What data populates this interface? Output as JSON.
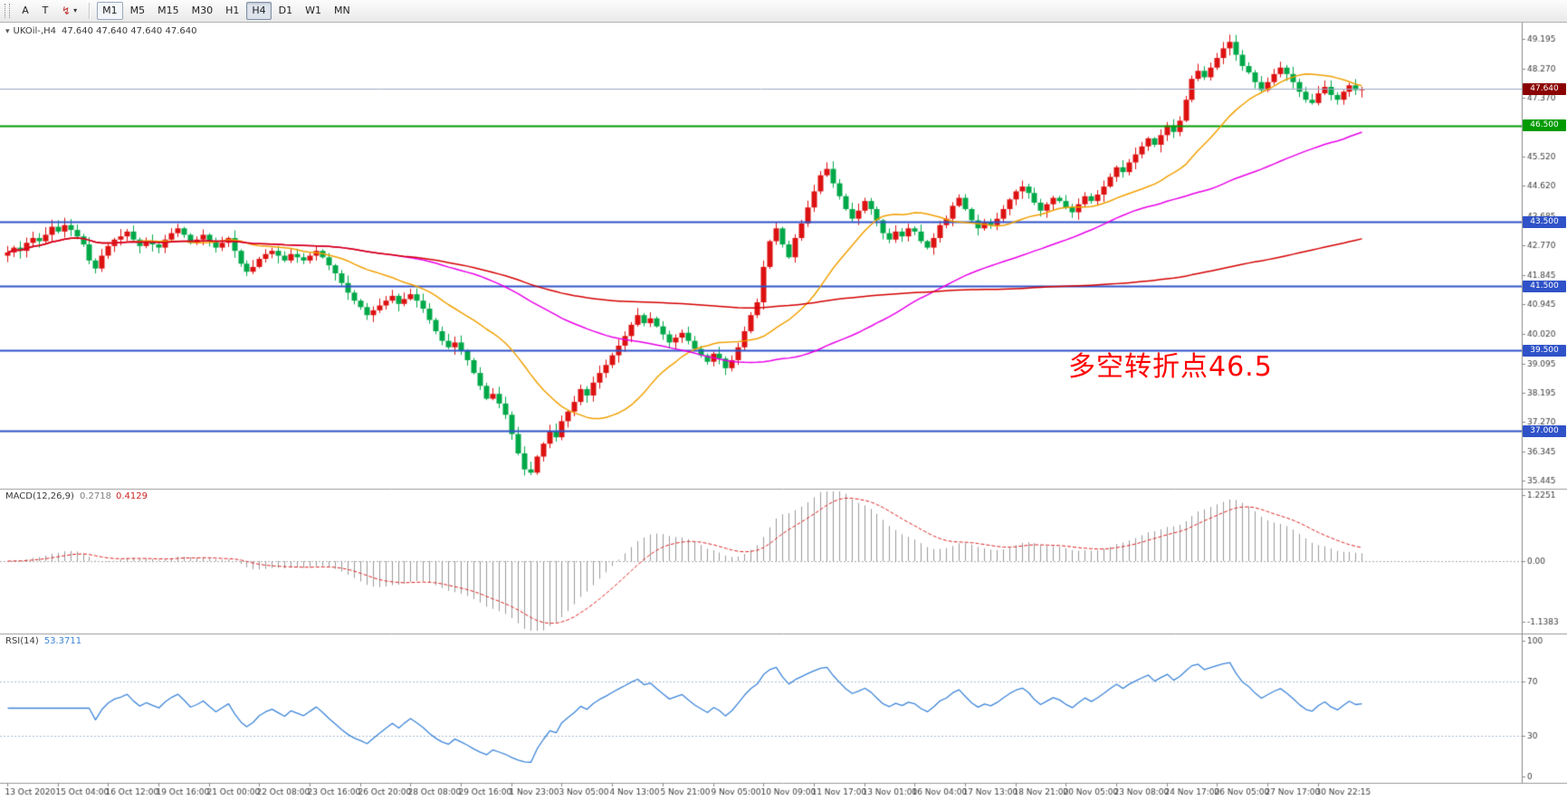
{
  "toolbar": {
    "tools": [
      {
        "label": "A"
      },
      {
        "label": "T"
      }
    ],
    "timeframes": [
      {
        "label": "M1",
        "state": "outlined"
      },
      {
        "label": "M5",
        "state": "normal"
      },
      {
        "label": "M15",
        "state": "normal"
      },
      {
        "label": "M30",
        "state": "normal"
      },
      {
        "label": "H1",
        "state": "normal"
      },
      {
        "label": "H4",
        "state": "active"
      },
      {
        "label": "D1",
        "state": "normal"
      },
      {
        "label": "W1",
        "state": "normal"
      },
      {
        "label": "MN",
        "state": "normal"
      }
    ]
  },
  "chart": {
    "title_symbol": "UKOil-,H4",
    "title_ohlc": "47.640 47.640 47.640 47.640",
    "annotation": {
      "text": "多空转折点46.5",
      "color": "#ff0000"
    },
    "axis_price_ticks": [
      "49.195",
      "48.270",
      "47.370",
      "45.520",
      "44.620",
      "43.685",
      "42.770",
      "41.845",
      "40.945",
      "40.020",
      "39.095",
      "38.195",
      "37.270",
      "36.345",
      "35.445"
    ],
    "levels": [
      {
        "label": "47.640",
        "price": 47.64,
        "type": "price",
        "badge_color": "#8b0000",
        "line_color": "#9aa8c4",
        "line_width": 1
      },
      {
        "label": "46.500",
        "price": 46.5,
        "type": "hline",
        "badge_color": "#009b00",
        "line_color": "#009b00",
        "line_width": 2
      },
      {
        "label": "43.500",
        "price": 43.5,
        "type": "hline",
        "badge_color": "#2f52c8",
        "line_color": "#2f52c8",
        "line_width": 2
      },
      {
        "label": "41.500",
        "price": 41.5,
        "type": "hline",
        "badge_color": "#2f52c8",
        "line_color": "#2f52c8",
        "line_width": 2
      },
      {
        "label": "39.500",
        "price": 39.5,
        "type": "hline",
        "badge_color": "#2f52c8",
        "line_color": "#2f52c8",
        "line_width": 2
      },
      {
        "label": "37.000",
        "price": 37.0,
        "type": "hline",
        "badge_color": "#2f52c8",
        "line_color": "#2f52c8",
        "line_width": 2
      }
    ],
    "dates": [
      "13 Oct 2020",
      "15 Oct 04:00",
      "16 Oct 12:00",
      "19 Oct 16:00",
      "21 Oct 00:00",
      "22 Oct 08:00",
      "23 Oct 16:00",
      "26 Oct 20:00",
      "28 Oct 08:00",
      "29 Oct 16:00",
      "1 Nov 23:00",
      "3 Nov 05:00",
      "4 Nov 13:00",
      "5 Nov 21:00",
      "9 Nov 05:00",
      "10 Nov 09:00",
      "11 Nov 17:00",
      "13 Nov 01:00",
      "16 Nov 04:00",
      "17 Nov 13:00",
      "18 Nov 21:00",
      "20 Nov 05:00",
      "23 Nov 08:00",
      "24 Nov 17:00",
      "26 Nov 05:00",
      "27 Nov 17:00",
      "30 Nov 22:15"
    ]
  },
  "macd_panel": {
    "label": "MACD(12,26,9)",
    "value_main": "0.2718",
    "value_signal": "0.4129",
    "axis_ticks": [
      "1.2251",
      "0.00",
      "-1.1383"
    ]
  },
  "rsi_panel": {
    "label": "RSI(14)",
    "value": "53.3711",
    "axis_ticks": [
      "100",
      "70",
      "30",
      "0"
    ]
  },
  "chart_data": {
    "type": "candlestick",
    "symbol": "UKOil-",
    "period": "H4",
    "title": "UKOil-,H4 47.640 47.640 47.640 47.640",
    "ylim": [
      35.445,
      49.195
    ],
    "bars_per_label": 8,
    "x_labels": [
      "13 Oct 2020",
      "15 Oct 04:00",
      "16 Oct 12:00",
      "19 Oct 16:00",
      "21 Oct 00:00",
      "22 Oct 08:00",
      "23 Oct 16:00",
      "26 Oct 20:00",
      "28 Oct 08:00",
      "29 Oct 16:00",
      "1 Nov 23:00",
      "3 Nov 05:00",
      "4 Nov 13:00",
      "5 Nov 21:00",
      "9 Nov 05:00",
      "10 Nov 09:00",
      "11 Nov 17:00",
      "13 Nov 01:00",
      "16 Nov 04:00",
      "17 Nov 13:00",
      "18 Nov 21:00",
      "20 Nov 05:00",
      "23 Nov 08:00",
      "24 Nov 17:00",
      "26 Nov 05:00",
      "27 Nov 17:00",
      "30 Nov 22:15"
    ],
    "open_rule": "previous_close",
    "wick_max": 0.24,
    "closes": [
      42.55,
      42.7,
      42.6,
      42.85,
      43.0,
      42.9,
      43.1,
      43.35,
      43.2,
      43.4,
      43.25,
      43.05,
      42.8,
      42.3,
      42.05,
      42.45,
      42.75,
      42.95,
      43.05,
      43.2,
      42.95,
      42.75,
      42.9,
      42.8,
      42.7,
      42.95,
      43.15,
      43.3,
      43.1,
      42.85,
      42.95,
      43.1,
      42.9,
      42.7,
      42.85,
      43.0,
      42.6,
      42.2,
      41.95,
      42.1,
      42.35,
      42.5,
      42.6,
      42.45,
      42.3,
      42.5,
      42.4,
      42.3,
      42.45,
      42.6,
      42.4,
      42.15,
      41.9,
      41.6,
      41.3,
      41.05,
      40.85,
      40.6,
      40.75,
      40.9,
      41.05,
      41.2,
      40.95,
      41.1,
      41.25,
      41.05,
      40.8,
      40.45,
      40.1,
      39.8,
      39.6,
      39.75,
      39.5,
      39.2,
      38.8,
      38.4,
      38.0,
      38.15,
      37.85,
      37.5,
      36.9,
      36.3,
      35.8,
      35.7,
      36.2,
      36.6,
      37.0,
      36.8,
      37.3,
      37.6,
      37.9,
      38.3,
      38.1,
      38.5,
      38.8,
      39.05,
      39.35,
      39.65,
      39.95,
      40.3,
      40.6,
      40.35,
      40.5,
      40.25,
      40.0,
      39.75,
      39.9,
      40.05,
      39.8,
      39.55,
      39.35,
      39.15,
      39.4,
      39.25,
      38.95,
      39.2,
      39.6,
      40.1,
      40.6,
      41.0,
      42.1,
      42.9,
      43.3,
      42.8,
      42.4,
      43.0,
      43.45,
      43.95,
      44.45,
      44.95,
      45.15,
      44.7,
      44.3,
      43.9,
      43.6,
      43.85,
      44.15,
      43.9,
      43.55,
      43.15,
      42.95,
      43.2,
      43.05,
      43.3,
      43.2,
      42.9,
      42.7,
      43.0,
      43.4,
      43.6,
      44.0,
      44.25,
      43.9,
      43.55,
      43.3,
      43.5,
      43.4,
      43.6,
      43.9,
      44.2,
      44.45,
      44.6,
      44.4,
      44.1,
      43.85,
      44.05,
      44.25,
      44.15,
      43.95,
      43.8,
      44.05,
      44.3,
      44.15,
      44.35,
      44.6,
      44.9,
      45.2,
      45.05,
      45.35,
      45.6,
      45.85,
      46.1,
      45.9,
      46.2,
      46.5,
      46.3,
      46.65,
      47.3,
      47.95,
      48.2,
      48.0,
      48.3,
      48.6,
      48.9,
      49.1,
      48.7,
      48.35,
      48.15,
      47.85,
      47.6,
      47.85,
      48.1,
      48.3,
      48.1,
      47.85,
      47.55,
      47.3,
      47.2,
      47.5,
      47.7,
      47.45,
      47.3,
      47.55,
      47.75,
      47.6,
      47.64
    ],
    "up_color": "#dd1111",
    "down_color": "#00a848",
    "moving_averages": [
      {
        "period": 20,
        "color": "#f0a000"
      },
      {
        "period": 60,
        "color": "#e800e8"
      },
      {
        "period": 150,
        "color": "#d40000"
      }
    ],
    "horizontal_levels": [
      47.64,
      46.5,
      43.5,
      41.5,
      39.5,
      37.0
    ],
    "indicators": [
      {
        "type": "MACD",
        "params": [
          12,
          26,
          9
        ],
        "current_main": 0.2718,
        "current_signal": 0.4129,
        "axis_range": [
          -1.1383,
          1.2251
        ],
        "histogram_color": "#9a9a9a",
        "signal_color": "#dd2222"
      },
      {
        "type": "RSI",
        "params": [
          14
        ],
        "current": 53.3711,
        "levels": [
          30,
          70
        ],
        "line_color": "#3d85d8",
        "axis_range": [
          0,
          100
        ]
      }
    ],
    "legend_position": "none",
    "grid": false
  }
}
